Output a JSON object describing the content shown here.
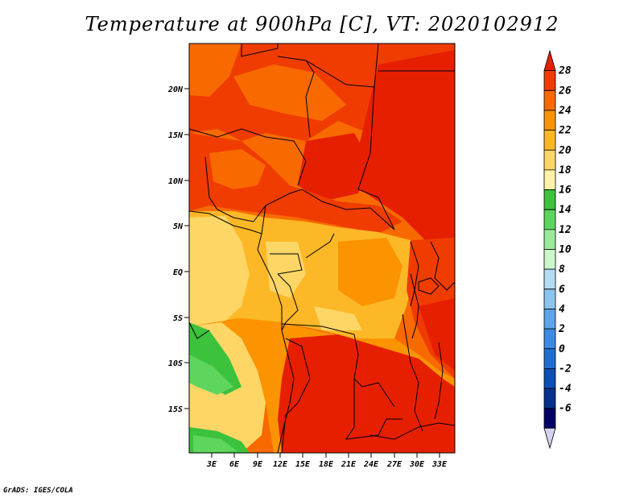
{
  "title": "Temperature at 900hPa [C], VT: 2020102912",
  "credit": "GrADS: IGES/COLA",
  "map": {
    "lon_range": [
      0,
      35
    ],
    "lat_range": [
      -20,
      24
    ],
    "lon_ticks": [
      "3E",
      "6E",
      "9E",
      "12E",
      "15E",
      "18E",
      "21E",
      "24E",
      "27E",
      "30E",
      "33E"
    ],
    "lat_ticks": [
      "20N",
      "15N",
      "10N",
      "5N",
      "EQ",
      "5S",
      "10S",
      "15S"
    ]
  },
  "colorbar": {
    "labels": [
      "28",
      "26",
      "24",
      "22",
      "20",
      "18",
      "16",
      "14",
      "12",
      "10",
      "8",
      "6",
      "4",
      "2",
      "0",
      "-2",
      "-4",
      "-6"
    ],
    "colors": [
      "#e61f00",
      "#f03c00",
      "#f86a00",
      "#fb9400",
      "#fdb827",
      "#fdd666",
      "#fdf3a8",
      "#3cc23c",
      "#5ed65e",
      "#9aea9a",
      "#cbf7cb",
      "#b4dcf5",
      "#8cc4f0",
      "#5fa5ea",
      "#3c8ae6",
      "#1e6ed2",
      "#0c50b4",
      "#06328c",
      "#000064",
      "#d2d2f0"
    ]
  },
  "fields": {
    "hot_color": "#e61f00",
    "warm_color": "#f03c00",
    "orange_color": "#f86a00",
    "amber_color": "#fb9400",
    "yellow_color": "#fdb827",
    "pale_color": "#fdd666",
    "green_color": "#3cc23c",
    "light_green_color": "#5ed65e"
  }
}
